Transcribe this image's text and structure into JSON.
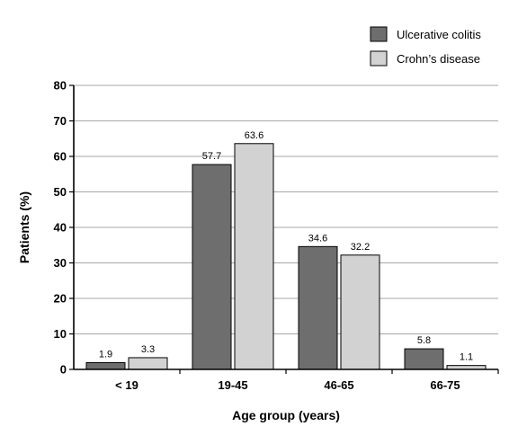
{
  "chart_data": {
    "type": "bar",
    "title": "",
    "xlabel": "Age group (years)",
    "ylabel": "Patients (%)",
    "ylim": [
      0,
      80
    ],
    "yticks": [
      0,
      10,
      20,
      30,
      40,
      50,
      60,
      70,
      80
    ],
    "grid": true,
    "legend_position": "top-right",
    "categories": [
      "< 19",
      "19-45",
      "46-65",
      "66-75"
    ],
    "series": [
      {
        "name": "Ulcerative colitis",
        "color": "#6e6e6e",
        "values": [
          1.9,
          57.7,
          34.6,
          5.8
        ],
        "labels": [
          "1.9",
          "57.7",
          "34.6",
          "5.8"
        ]
      },
      {
        "name": "Crohn’s disease",
        "color": "#d2d2d2",
        "values": [
          3.3,
          63.6,
          32.2,
          1.1
        ],
        "labels": [
          "3.3",
          "63.6",
          "32.2",
          "1.1"
        ]
      }
    ]
  }
}
